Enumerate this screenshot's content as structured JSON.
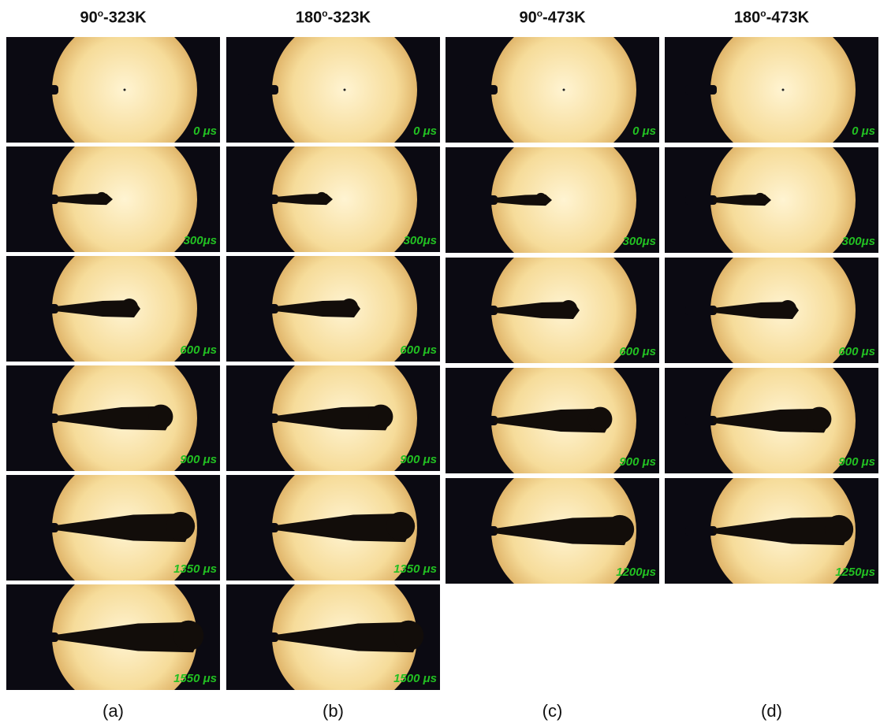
{
  "columns": [
    {
      "header": {
        "base": "90",
        "sup": "o",
        "rest": "-323K"
      },
      "caption": "(a)",
      "frames": [
        "0 μs",
        "300μs",
        "600 μs",
        "900 μs",
        "1350 μs",
        "1550 μs"
      ]
    },
    {
      "header": {
        "base": "180",
        "sup": "o",
        "rest": "-323K"
      },
      "caption": "(b)",
      "frames": [
        "0 μs",
        "300μs",
        "600 μs",
        "900 μs",
        "1350 μs",
        "1500 μs"
      ]
    },
    {
      "header": {
        "base": "90",
        "sup": "o",
        "rest": "-473K"
      },
      "caption": "(c)",
      "frames": [
        "0 μs",
        "300μs",
        "600 μs",
        "900 μs",
        "1200μs"
      ]
    },
    {
      "header": {
        "base": "180",
        "sup": "o",
        "rest": "-473K"
      },
      "caption": "(d)",
      "frames": [
        "0 μs",
        "300μs",
        "600 μs",
        "900 μs",
        "1250μs"
      ]
    }
  ]
}
